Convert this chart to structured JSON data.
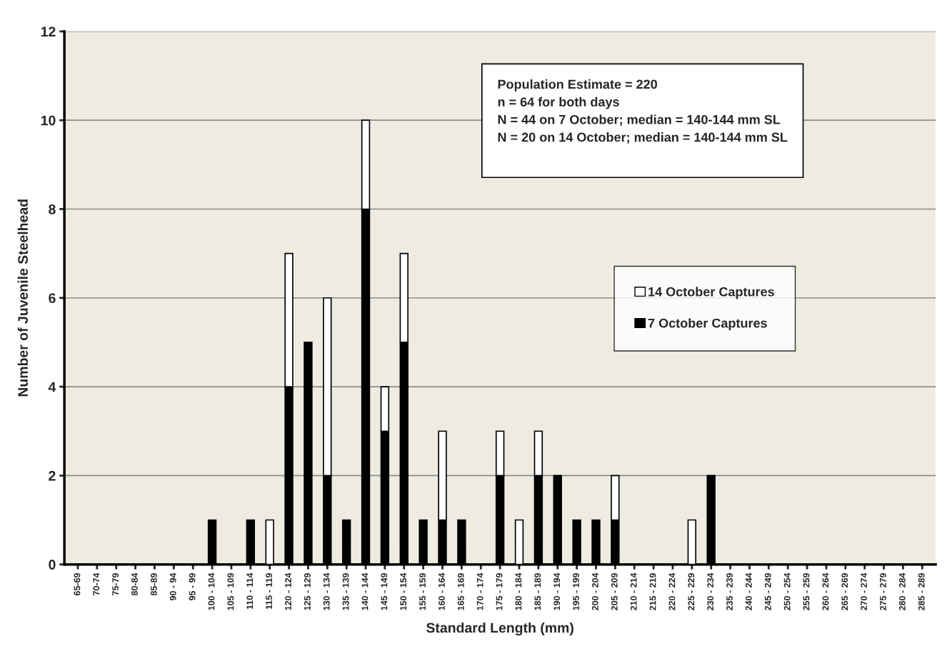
{
  "chart_data": {
    "type": "bar",
    "stacked": true,
    "xlabel": "Standard Length (mm)",
    "ylabel": "Number of Juvenile Steelhead",
    "categories": [
      "65-69",
      "70-74",
      "75-79",
      "80-84",
      "85-89",
      "90 - 94",
      "95 - 99",
      "100 - 104",
      "105 - 109",
      "110 - 114",
      "115 - 119",
      "120 - 124",
      "125 - 129",
      "130 - 134",
      "135 - 139",
      "140 - 144",
      "145 - 149",
      "150 - 154",
      "155 - 159",
      "160 - 164",
      "165 - 169",
      "170 - 174",
      "175 - 179",
      "180 - 184",
      "185 - 189",
      "190 - 194",
      "195 - 199",
      "200 - 204",
      "205 - 209",
      "210 - 214",
      "215 - 219",
      "220 - 224",
      "225 - 229",
      "230 - 234",
      "235 - 239",
      "240 - 244",
      "245 - 249",
      "250 - 254",
      "255 - 259",
      "260 - 264",
      "265 - 269",
      "270 - 274",
      "275 - 279",
      "280 - 284",
      "285 - 289"
    ],
    "series": [
      {
        "name": "7 October Captures",
        "color": "#000000",
        "values": [
          0,
          0,
          0,
          0,
          0,
          0,
          0,
          1,
          0,
          1,
          0,
          4,
          5,
          2,
          1,
          8,
          3,
          5,
          1,
          1,
          1,
          0,
          2,
          0,
          2,
          2,
          1,
          1,
          1,
          0,
          0,
          0,
          0,
          2,
          0,
          0,
          0,
          0,
          0,
          0,
          0,
          0,
          0,
          0,
          0
        ]
      },
      {
        "name": "14 October Captures",
        "color": "#ffffff",
        "values": [
          0,
          0,
          0,
          0,
          0,
          0,
          0,
          0,
          0,
          0,
          1,
          3,
          0,
          4,
          0,
          2,
          1,
          2,
          0,
          2,
          0,
          0,
          1,
          1,
          1,
          0,
          0,
          0,
          1,
          0,
          0,
          0,
          1,
          0,
          0,
          0,
          0,
          0,
          0,
          0,
          0,
          0,
          0,
          0,
          0
        ]
      }
    ],
    "ylim": [
      0,
      12
    ],
    "yticks": [
      0,
      2,
      4,
      6,
      8,
      10,
      12
    ],
    "grid": "y",
    "legend": "right",
    "annotations": [
      "Population Estimate = 220",
      "n = 64 for both days",
      "N = 44 on 7 October; median = 140-144 mm SL",
      "N = 20 on 14 October; median = 140-144 mm SL"
    ]
  }
}
